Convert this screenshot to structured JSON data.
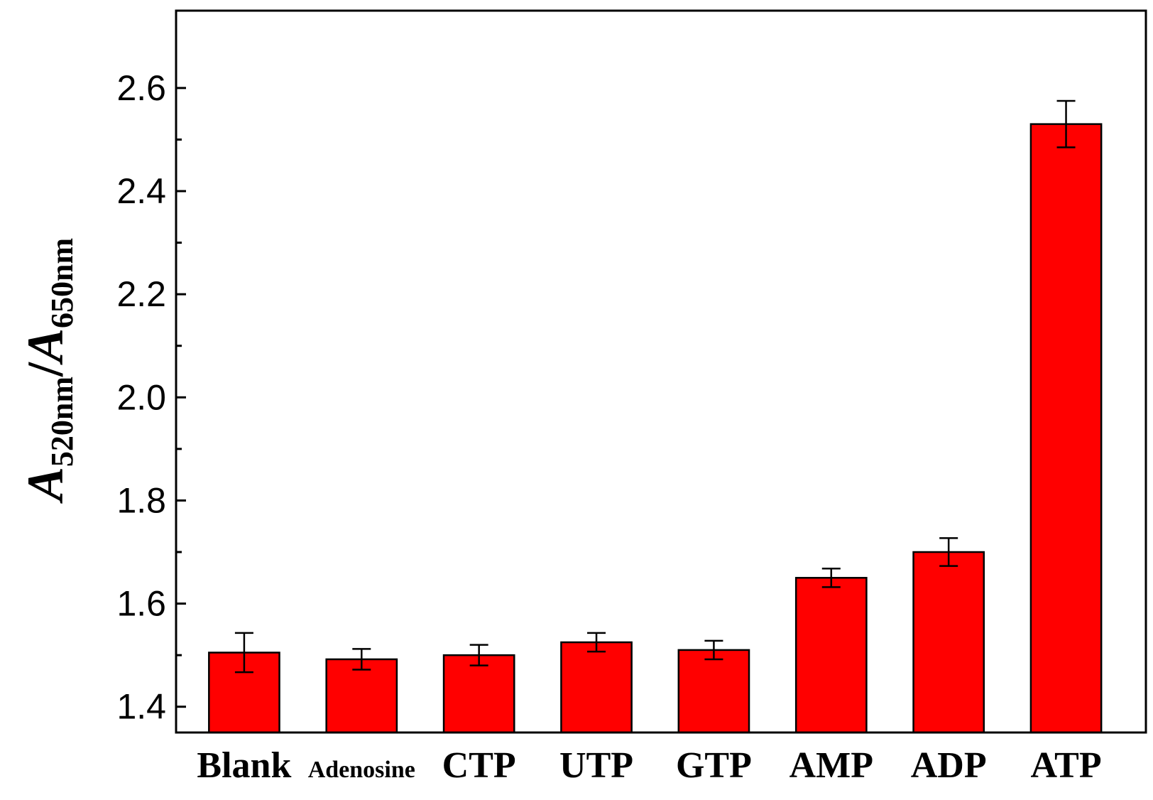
{
  "chart_data": {
    "type": "bar",
    "categories": [
      "Blank",
      "Adenosine",
      "CTP",
      "UTP",
      "GTP",
      "AMP",
      "ADP",
      "ATP"
    ],
    "values": [
      1.505,
      1.492,
      1.5,
      1.525,
      1.51,
      1.65,
      1.7,
      2.53
    ],
    "errors": [
      0.038,
      0.02,
      0.02,
      0.018,
      0.018,
      0.018,
      0.027,
      0.045
    ],
    "ylim": [
      1.35,
      2.75
    ],
    "yticks": [
      1.4,
      1.6,
      1.8,
      2.0,
      2.2,
      2.4,
      2.6
    ],
    "ytick_labels": [
      "1.4",
      "1.6",
      "1.8",
      "2.0",
      "2.2",
      "2.4",
      "2.6"
    ],
    "ylabel": {
      "parts": [
        {
          "text": "A",
          "style": "italic"
        },
        {
          "text": "520nm",
          "style": "sub"
        },
        {
          "text": "/",
          "style": "normal"
        },
        {
          "text": "A",
          "style": "italic"
        },
        {
          "text": "650nm",
          "style": "sub"
        }
      ]
    },
    "xlabel": "",
    "title": "",
    "bar_color": "#ff0000",
    "grid": false,
    "legend": "none"
  }
}
